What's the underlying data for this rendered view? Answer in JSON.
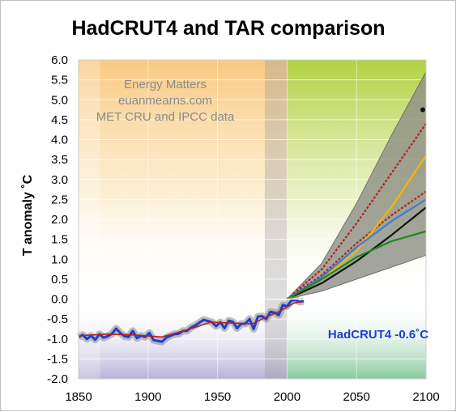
{
  "chart_data": {
    "type": "line",
    "title": "HadCRUT4 and TAR comparison",
    "ylabel": "T anomaly ˚C",
    "xlabel": "",
    "xlim": [
      1850,
      2100
    ],
    "ylim": [
      -2.0,
      6.0
    ],
    "x_ticks": [
      "1850",
      "1900",
      "1950",
      "2000",
      "2050",
      "2100"
    ],
    "y_ticks": [
      "6.0",
      "5.5",
      "5.0",
      "4.5",
      "4.0",
      "3.5",
      "3.0",
      "2.5",
      "2.0",
      "1.5",
      "1.0",
      "0.5",
      "0.0",
      "-0.5",
      "-1.0",
      "-1.5",
      "-2.0"
    ],
    "grid": true,
    "annotations": [
      "Energy Matters",
      "euanmearns.com",
      "MET CRU and IPCC data"
    ],
    "observed_series": {
      "name": "HadCRUT4 -0.6˚C",
      "color": "#1f3ecf",
      "x": [
        1850,
        1853,
        1856,
        1859,
        1862,
        1865,
        1868,
        1871,
        1874,
        1877,
        1880,
        1883,
        1886,
        1889,
        1892,
        1895,
        1898,
        1901,
        1904,
        1907,
        1910,
        1913,
        1916,
        1919,
        1922,
        1925,
        1928,
        1931,
        1934,
        1937,
        1940,
        1943,
        1946,
        1949,
        1952,
        1955,
        1958,
        1961,
        1964,
        1967,
        1970,
        1973,
        1976,
        1979,
        1982,
        1985,
        1988,
        1991,
        1994,
        1997,
        2000,
        2003,
        2006,
        2009,
        2012
      ],
      "y": [
        -0.95,
        -0.9,
        -1.0,
        -0.92,
        -1.02,
        -0.88,
        -0.97,
        -0.93,
        -0.87,
        -0.74,
        -0.85,
        -0.93,
        -0.95,
        -0.8,
        -0.98,
        -0.92,
        -0.95,
        -0.85,
        -1.03,
        -1.05,
        -1.07,
        -0.97,
        -0.92,
        -0.88,
        -0.87,
        -0.8,
        -0.8,
        -0.71,
        -0.66,
        -0.59,
        -0.52,
        -0.55,
        -0.58,
        -0.68,
        -0.58,
        -0.73,
        -0.54,
        -0.57,
        -0.73,
        -0.62,
        -0.62,
        -0.5,
        -0.75,
        -0.44,
        -0.43,
        -0.5,
        -0.32,
        -0.34,
        -0.4,
        -0.15,
        -0.18,
        -0.04,
        -0.02,
        -0.07,
        -0.05
      ]
    },
    "trend_series": {
      "color": "#b22222",
      "x": [
        1850,
        1870,
        1890,
        1910,
        1930,
        1945,
        1960,
        1975,
        1985,
        1995,
        2005,
        2012
      ],
      "y": [
        -0.92,
        -0.88,
        -0.9,
        -0.95,
        -0.75,
        -0.58,
        -0.6,
        -0.62,
        -0.45,
        -0.3,
        -0.1,
        -0.05
      ]
    },
    "projection_envelope": {
      "x": [
        2000,
        2025,
        2050,
        2075,
        2100
      ],
      "upper": [
        0.0,
        0.9,
        2.4,
        4.1,
        5.7
      ],
      "lower": [
        0.0,
        0.2,
        0.5,
        0.8,
        1.1
      ]
    },
    "projections": [
      {
        "color": "#b22222",
        "x": [
          2000,
          2025,
          2050,
          2075,
          2100
        ],
        "y": [
          0.0,
          0.75,
          1.9,
          3.15,
          4.4
        ],
        "dashed": true
      },
      {
        "color": "#b22222",
        "x": [
          2000,
          2025,
          2050,
          2075,
          2100
        ],
        "y": [
          0.0,
          0.6,
          1.4,
          2.1,
          2.7
        ],
        "dashed": true
      },
      {
        "color": "#f0b800",
        "x": [
          2000,
          2025,
          2050,
          2075,
          2100
        ],
        "y": [
          0.0,
          0.5,
          1.2,
          2.3,
          3.6
        ],
        "dashed": false
      },
      {
        "color": "#3a7fd5",
        "x": [
          2000,
          2025,
          2050,
          2075,
          2100
        ],
        "y": [
          0.0,
          0.55,
          1.3,
          1.95,
          2.5
        ],
        "dashed": false
      },
      {
        "color": "#111111",
        "x": [
          2000,
          2025,
          2050,
          2075,
          2100
        ],
        "y": [
          0.0,
          0.4,
          0.95,
          1.6,
          2.3
        ],
        "dashed": false
      },
      {
        "color": "#1a8a1a",
        "x": [
          2000,
          2025,
          2050,
          2075,
          2100
        ],
        "y": [
          0.0,
          0.5,
          1.05,
          1.45,
          1.7
        ],
        "dashed": false
      },
      {
        "color": "#111111",
        "x": [
          2100
        ],
        "y": [
          4.75
        ],
        "dashed": false
      }
    ],
    "colors": {
      "history_band": "#f8c57a",
      "future_band": "#a8cc2e",
      "lower_band_left": "#b7b4d8",
      "lower_band_right": "#7ec59a",
      "envelope": "#8d8f86"
    }
  }
}
